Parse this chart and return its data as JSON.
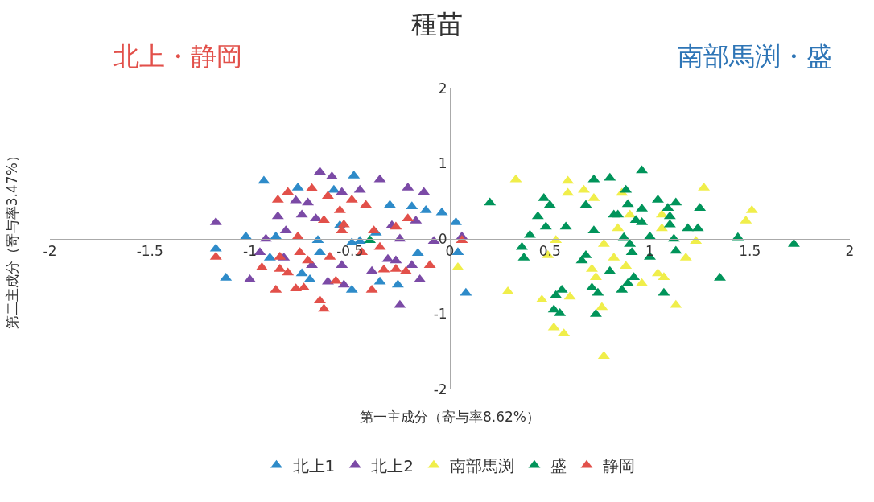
{
  "chart_data": {
    "type": "scatter",
    "title": "種苗",
    "xlabel": "第一主成分（寄与率8.62%）",
    "ylabel": "第二主成分（寄与率3.47%）",
    "xlim": [
      -2,
      2
    ],
    "xticks": [
      -2,
      -1.5,
      -1,
      -0.5,
      0,
      0.5,
      1,
      1.5,
      2
    ],
    "ylim": [
      -2,
      2
    ],
    "yticks": [
      -2,
      -1,
      0,
      1,
      2
    ],
    "grid": false,
    "legend": "bottom",
    "marker": "triangle",
    "annotations": [
      "北上・静岡",
      "南部馬渕・盛"
    ],
    "series": [
      {
        "name": "北上1",
        "color": "#2e8bc9",
        "x": [
          -0.93,
          -0.76,
          -0.48,
          -0.58,
          -0.3,
          -0.19,
          -0.12,
          -0.04,
          0.03,
          -1.02,
          -0.87,
          -0.66,
          -0.49,
          -0.45,
          -1.17,
          -1.12,
          -0.9,
          -0.74,
          -0.7,
          -0.49,
          -0.35,
          -0.26,
          -0.16,
          0.04,
          0.08,
          -0.65,
          -0.55,
          -0.37
        ],
        "values": [
          0.77,
          0.68,
          0.84,
          0.65,
          0.45,
          0.43,
          0.38,
          0.35,
          0.22,
          0.03,
          0.03,
          -0.02,
          -0.05,
          -0.03,
          -0.13,
          -0.52,
          -0.25,
          -0.46,
          -0.54,
          -0.68,
          -0.57,
          -0.61,
          -0.19,
          -0.18,
          -0.72,
          -0.18,
          0.18,
          0.08
        ]
      },
      {
        "name": "北上2",
        "color": "#7b4aa6",
        "x": [
          -0.65,
          -0.59,
          -0.35,
          -0.21,
          -0.13,
          -0.54,
          -0.77,
          -0.71,
          -0.86,
          -0.74,
          -0.67,
          -1.17,
          -0.92,
          -0.82,
          -0.29,
          -0.17,
          -0.25,
          -0.08,
          0.06,
          -0.95,
          -0.83,
          -1.0,
          -0.61,
          -0.53,
          -0.54,
          -0.39,
          -0.27,
          -0.19,
          -0.15,
          -0.25,
          -0.69,
          -0.45,
          -0.31
        ],
        "values": [
          0.89,
          0.83,
          0.79,
          0.68,
          0.62,
          0.62,
          0.51,
          0.48,
          0.3,
          0.32,
          0.27,
          0.22,
          0.0,
          0.11,
          0.18,
          0.24,
          0.0,
          -0.03,
          0.03,
          -0.18,
          -0.25,
          -0.54,
          -0.57,
          -0.61,
          -0.35,
          -0.43,
          -0.29,
          -0.35,
          -0.54,
          -0.88,
          -0.35,
          0.65,
          -0.27
        ]
      },
      {
        "name": "南部馬渕",
        "color": "#f0ee4a",
        "x": [
          0.33,
          0.59,
          0.59,
          0.67,
          0.72,
          0.86,
          0.9,
          1.06,
          1.06,
          0.84,
          0.53,
          0.77,
          0.49,
          0.82,
          0.71,
          0.73,
          0.88,
          1.04,
          1.07,
          0.96,
          1.18,
          1.23,
          1.27,
          1.51,
          1.48,
          0.29,
          0.46,
          0.6,
          0.76,
          1.13,
          0.52,
          0.57,
          0.77,
          0.04
        ],
        "values": [
          0.79,
          0.77,
          0.61,
          0.65,
          0.54,
          0.61,
          0.32,
          0.32,
          0.14,
          0.14,
          -0.02,
          -0.07,
          -0.22,
          -0.25,
          -0.4,
          -0.51,
          -0.36,
          -0.46,
          -0.51,
          -0.59,
          -0.25,
          -0.03,
          0.68,
          0.38,
          0.24,
          -0.7,
          -0.81,
          -0.77,
          -0.91,
          -0.88,
          -1.18,
          -1.26,
          -1.56,
          -0.38
        ]
      },
      {
        "name": "盛",
        "color": "#00945a",
        "x": [
          0.2,
          0.47,
          0.5,
          0.44,
          0.48,
          0.4,
          0.36,
          0.37,
          0.58,
          0.68,
          0.72,
          0.8,
          0.96,
          0.88,
          0.89,
          0.82,
          0.84,
          0.96,
          0.93,
          0.96,
          0.72,
          0.87,
          0.9,
          0.91,
          1.0,
          1.0,
          1.04,
          1.09,
          1.13,
          1.1,
          1.1,
          1.19,
          1.24,
          1.25,
          1.12,
          1.13,
          1.44,
          1.72,
          1.35,
          1.07,
          0.66,
          0.68,
          0.8,
          0.71,
          0.74,
          0.86,
          0.89,
          0.92,
          0.53,
          0.56,
          0.52,
          0.55,
          0.73,
          -0.4
        ],
        "values": [
          0.48,
          0.54,
          0.45,
          0.3,
          0.16,
          0.05,
          -0.11,
          -0.25,
          0.16,
          0.45,
          0.79,
          0.81,
          0.91,
          0.65,
          0.46,
          0.32,
          0.32,
          0.4,
          0.25,
          0.22,
          0.11,
          0.02,
          -0.07,
          -0.18,
          0.03,
          -0.24,
          0.52,
          0.41,
          0.48,
          0.3,
          0.19,
          0.14,
          0.14,
          0.41,
          0.0,
          -0.16,
          0.02,
          -0.07,
          -0.52,
          -0.72,
          -0.29,
          -0.22,
          -0.43,
          -0.65,
          -0.72,
          -0.68,
          -0.59,
          -0.51,
          -0.75,
          -0.68,
          -0.94,
          -0.99,
          -1.0,
          -0.02
        ]
      },
      {
        "name": "静岡",
        "color": "#e2504a",
        "x": [
          -0.69,
          -0.81,
          -0.86,
          -0.61,
          -0.49,
          -0.42,
          -0.55,
          -0.63,
          -0.53,
          -0.54,
          -0.38,
          -0.27,
          -0.21,
          -0.76,
          -0.75,
          -1.17,
          -0.85,
          -0.71,
          -0.6,
          -0.44,
          -0.35,
          -0.94,
          -0.85,
          -0.81,
          -0.57,
          -0.33,
          -0.27,
          -0.22,
          -0.1,
          -0.87,
          -0.77,
          -0.73,
          -0.39,
          -0.65,
          -0.63,
          0.06
        ],
        "values": [
          0.67,
          0.62,
          0.52,
          0.57,
          0.52,
          0.45,
          0.38,
          0.25,
          0.19,
          0.11,
          0.11,
          0.16,
          0.27,
          0.03,
          -0.18,
          -0.24,
          -0.24,
          -0.29,
          -0.24,
          -0.18,
          -0.11,
          -0.38,
          -0.4,
          -0.45,
          -0.56,
          -0.41,
          -0.4,
          -0.43,
          -0.35,
          -0.68,
          -0.66,
          -0.65,
          -0.68,
          -0.82,
          -0.93,
          -0.02
        ]
      }
    ]
  }
}
